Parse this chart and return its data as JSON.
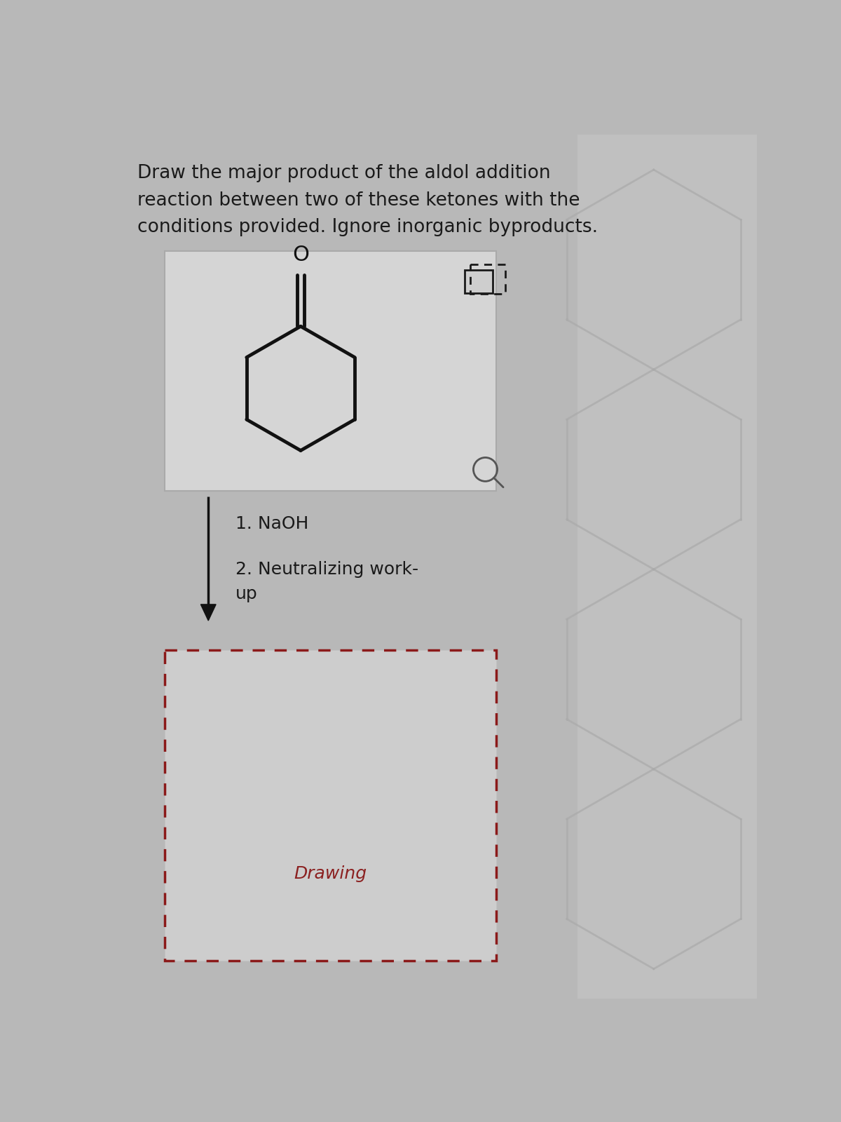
{
  "title_lines": [
    "Draw the major product of the aldol addition",
    "reaction between two of these ketones with the",
    "conditions provided. Ignore inorganic byproducts."
  ],
  "title_fontsize": 19,
  "title_color": "#1a1a1a",
  "bg_color": "#b8b8b8",
  "card_facecolor": "#cecece",
  "conditions_fontsize": 18,
  "drawing_label": "Drawing",
  "drawing_label_color": "#8b2020",
  "drawing_label_fontsize": 18,
  "arrow_color": "#111111",
  "dashed_border_color": "#8b1a1a",
  "molecule_color": "#111111",
  "o_label_color": "#111111",
  "right_panel_color": "#c0c0c0"
}
